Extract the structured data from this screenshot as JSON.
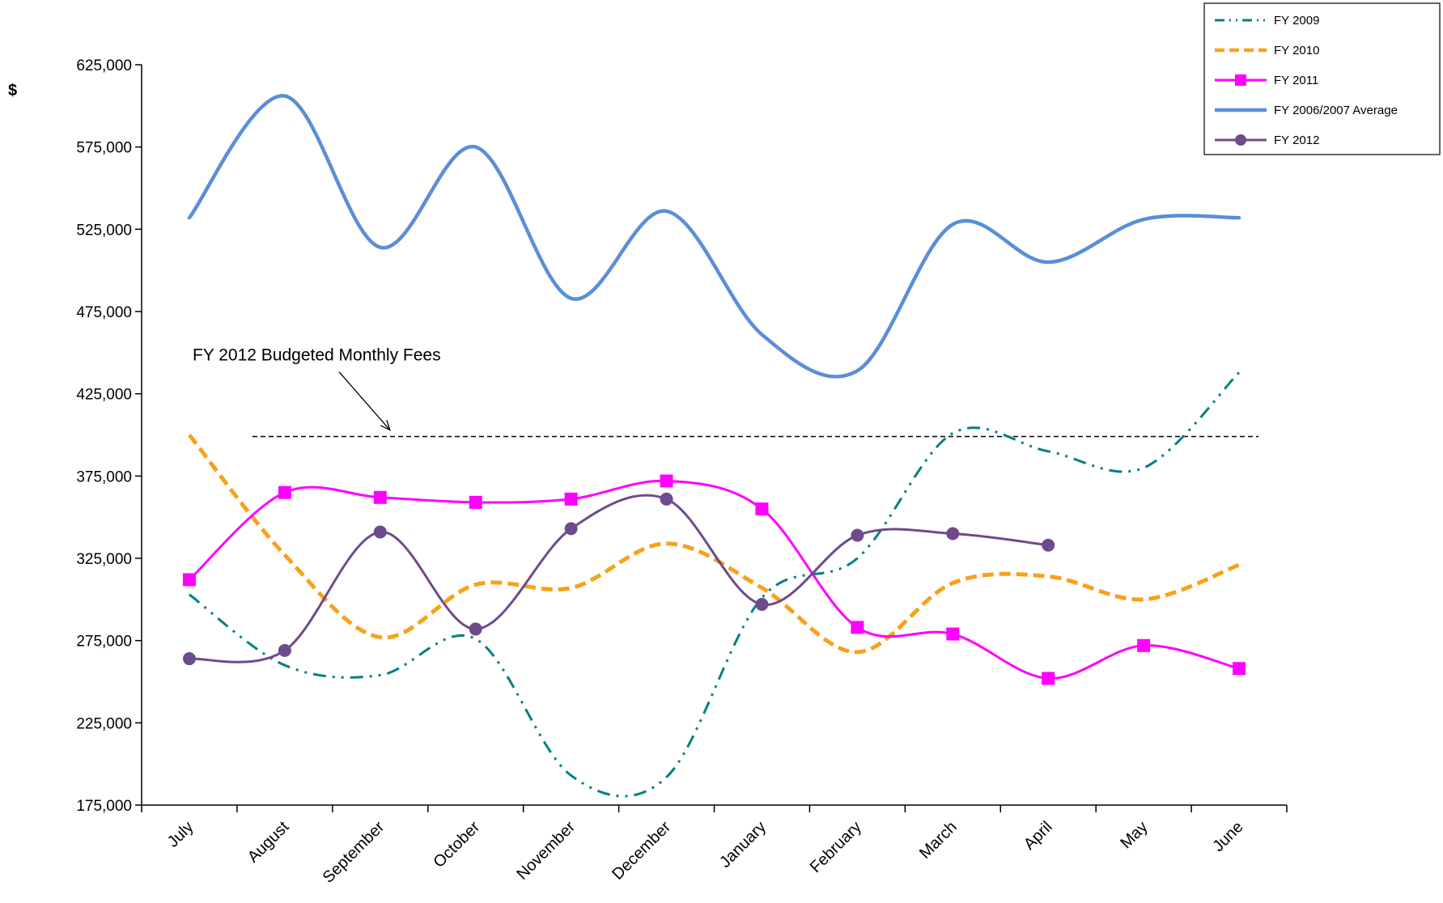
{
  "chart_data": {
    "type": "line",
    "title": "",
    "xlabel": "",
    "ylabel": "$",
    "ylim": [
      175000,
      625000
    ],
    "yticks": [
      "625,000",
      "575,000",
      "525,000",
      "475,000",
      "425,000",
      "375,000",
      "325,000",
      "275,000",
      "225,000",
      "175,000"
    ],
    "ytick_values": [
      625000,
      575000,
      525000,
      475000,
      425000,
      375000,
      325000,
      275000,
      225000,
      175000
    ],
    "categories": [
      "July",
      "August",
      "September",
      "October",
      "November",
      "December",
      "January",
      "February",
      "March",
      "April",
      "May",
      "June"
    ],
    "grid": false,
    "legend_position": "top-right",
    "series": [
      {
        "name": "FY 2009",
        "color": "#008080",
        "style": "dash-dot-dot",
        "marker": "none",
        "values": [
          303000,
          260000,
          254000,
          276000,
          193000,
          192000,
          301000,
          325000,
          401000,
          390000,
          380000,
          438000
        ]
      },
      {
        "name": "FY 2010",
        "color": "#F7A21B",
        "style": "dashed",
        "marker": "none",
        "values": [
          400000,
          327000,
          277000,
          309000,
          307000,
          334000,
          307000,
          268000,
          310000,
          314000,
          300000,
          321000
        ]
      },
      {
        "name": "FY 2011",
        "color": "#FF00FF",
        "style": "solid",
        "marker": "square",
        "values": [
          312000,
          365000,
          362000,
          359000,
          361000,
          372000,
          355000,
          283000,
          279000,
          252000,
          272000,
          258000
        ]
      },
      {
        "name": "FY 2006/2007  Average",
        "color": "#5B8ED6",
        "style": "solid",
        "marker": "none",
        "values": [
          532000,
          606000,
          514000,
          575000,
          483000,
          536000,
          461000,
          439000,
          528000,
          505000,
          531000,
          532000
        ]
      },
      {
        "name": "FY 2012",
        "color": "#6E4B8B",
        "style": "solid",
        "marker": "circle",
        "values": [
          264000,
          269000,
          341000,
          282000,
          343000,
          361000,
          297000,
          339000,
          340000,
          333000,
          null,
          null
        ]
      }
    ],
    "reference_line": {
      "value": 399000,
      "label": "FY 2012 Budgeted Monthly Fees",
      "color": "#000000",
      "style": "dashed"
    }
  }
}
